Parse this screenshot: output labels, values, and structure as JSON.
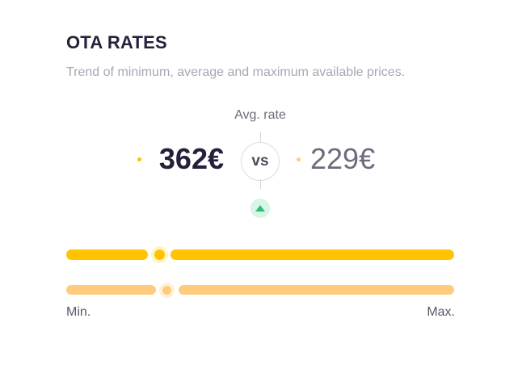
{
  "header": {
    "title": "OTA RATES",
    "subtitle": "Trend of minimum, average and maximum available prices."
  },
  "comparison": {
    "label": "Avg. rate",
    "primary_value": "362€",
    "vs_label": "vs",
    "secondary_value": "229€",
    "trend": "up",
    "trend_icon": "arrow-up-icon"
  },
  "scale": {
    "min_label": "Min.",
    "max_label": "Max.",
    "primary_position": 0.24,
    "secondary_position": 0.26
  },
  "colors": {
    "primary": "#ffc300",
    "secondary": "#ffcb7d",
    "trend_bg": "#d8f5e6",
    "trend_fg": "#2fbf7a",
    "title": "#24213a"
  }
}
